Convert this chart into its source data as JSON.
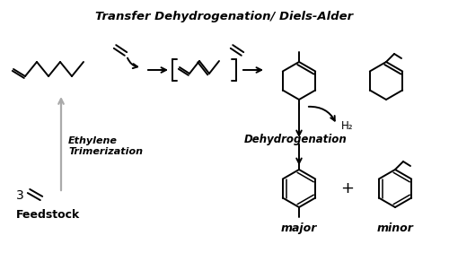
{
  "title": "Transfer Dehydrogenation/ Diels-Alder",
  "title_fontsize": 9.5,
  "label_ethylene_trimerization": "Ethylene\nTrimerization",
  "label_dehydrogenation": "Dehydrogenation",
  "label_h2": "H₂",
  "label_major": "major",
  "label_minor": "minor",
  "label_feedstock": "Feedstock",
  "label_3": "3",
  "bg_color": "#ffffff",
  "line_color": "#000000",
  "gray_color": "#aaaaaa",
  "lw": 1.4,
  "lw_thin": 1.1
}
